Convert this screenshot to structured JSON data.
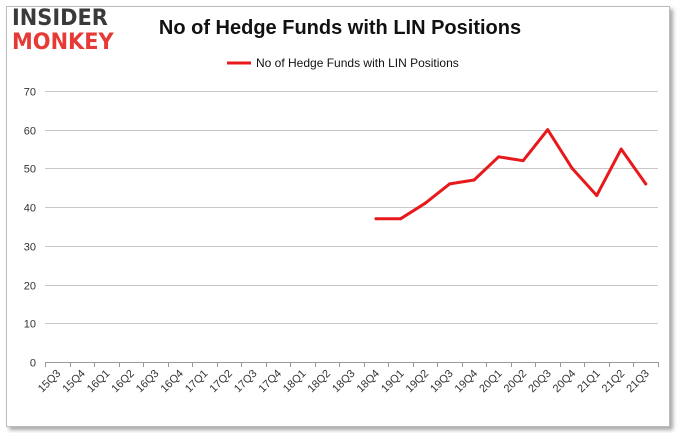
{
  "logo": {
    "line1": "INSIDER",
    "line2": "MONKEY",
    "colors": {
      "line1": "#3a3a3a",
      "line2": "#e53a35"
    }
  },
  "chart_data": {
    "type": "line",
    "title": "No of Hedge Funds with LIN Positions",
    "xlabel": "",
    "ylabel": "",
    "categories": [
      "15Q3",
      "15Q4",
      "16Q1",
      "16Q2",
      "16Q3",
      "16Q4",
      "17Q1",
      "17Q2",
      "17Q3",
      "17Q4",
      "18Q1",
      "18Q2",
      "18Q3",
      "18Q4",
      "19Q1",
      "19Q2",
      "19Q3",
      "19Q4",
      "20Q1",
      "20Q2",
      "20Q3",
      "20Q4",
      "21Q1",
      "21Q2",
      "21Q3"
    ],
    "series": [
      {
        "name": "No of Hedge Funds with LIN Positions",
        "color": "#e8191c",
        "values": [
          null,
          null,
          null,
          null,
          null,
          null,
          null,
          null,
          null,
          null,
          null,
          null,
          null,
          37,
          37,
          41,
          46,
          47,
          53,
          52,
          60,
          50,
          43,
          55,
          46
        ]
      }
    ],
    "ylim": [
      0,
      70
    ],
    "yticks": [
      0,
      10,
      20,
      30,
      40,
      50,
      60,
      70
    ],
    "grid": true,
    "legend": "top-center"
  }
}
